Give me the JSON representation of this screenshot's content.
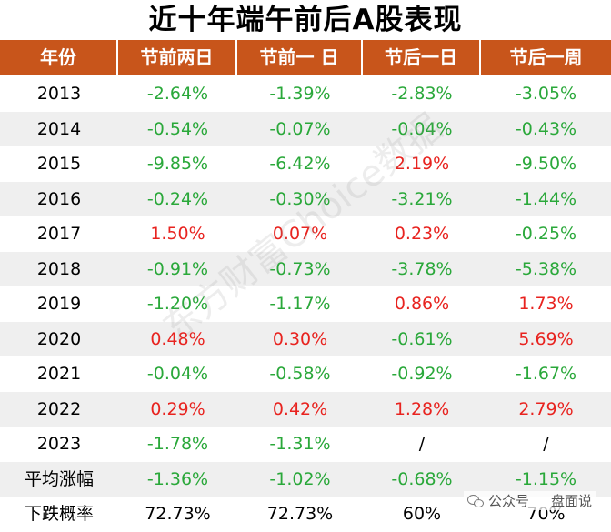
{
  "chart_data": {
    "type": "table",
    "title": "近十年端午前后A股表现",
    "columns": [
      "年份",
      "节前两日",
      "节前一 日",
      "节后一日",
      "节后一周"
    ],
    "rows": [
      {
        "label": "2013",
        "values": [
          "-2.64%",
          "-1.39%",
          "-2.83%",
          "-3.05%"
        ],
        "colors": [
          "neg",
          "neg",
          "neg",
          "neg"
        ]
      },
      {
        "label": "2014",
        "values": [
          "-0.54%",
          "-0.07%",
          "-0.04%",
          "-0.43%"
        ],
        "colors": [
          "neg",
          "neg",
          "neg",
          "neg"
        ]
      },
      {
        "label": "2015",
        "values": [
          "-9.85%",
          "-6.42%",
          "2.19%",
          "-9.50%"
        ],
        "colors": [
          "neg",
          "neg",
          "pos",
          "neg"
        ]
      },
      {
        "label": "2016",
        "values": [
          "-0.24%",
          "-0.30%",
          "-3.21%",
          "-1.44%"
        ],
        "colors": [
          "neg",
          "neg",
          "neg",
          "neg"
        ]
      },
      {
        "label": "2017",
        "values": [
          "1.50%",
          "0.07%",
          "0.23%",
          "-0.25%"
        ],
        "colors": [
          "pos",
          "pos",
          "pos",
          "neg"
        ]
      },
      {
        "label": "2018",
        "values": [
          "-0.91%",
          "-0.73%",
          "-3.78%",
          "-5.38%"
        ],
        "colors": [
          "neg",
          "neg",
          "neg",
          "neg"
        ]
      },
      {
        "label": "2019",
        "values": [
          "-1.20%",
          "-1.17%",
          "0.86%",
          "1.73%"
        ],
        "colors": [
          "neg",
          "neg",
          "pos",
          "pos"
        ]
      },
      {
        "label": "2020",
        "values": [
          "0.48%",
          "0.30%",
          "-0.61%",
          "5.69%"
        ],
        "colors": [
          "pos",
          "pos",
          "neg",
          "pos"
        ]
      },
      {
        "label": "2021",
        "values": [
          "-0.04%",
          "-0.58%",
          "-0.92%",
          "-1.67%"
        ],
        "colors": [
          "neg",
          "neg",
          "neg",
          "neg"
        ]
      },
      {
        "label": "2022",
        "values": [
          "0.29%",
          "0.42%",
          "1.28%",
          "2.79%"
        ],
        "colors": [
          "pos",
          "pos",
          "pos",
          "pos"
        ]
      },
      {
        "label": "2023",
        "values": [
          "-1.78%",
          "-1.31%",
          "/",
          "/"
        ],
        "colors": [
          "neg",
          "neg",
          "plain",
          "plain"
        ]
      },
      {
        "label": "平均涨幅",
        "values": [
          "-1.36%",
          "-1.02%",
          "-0.68%",
          "-1.15%"
        ],
        "colors": [
          "neg",
          "neg",
          "neg",
          "neg"
        ]
      },
      {
        "label": "下跌概率",
        "values": [
          "72.73%",
          "72.73%",
          "60%",
          "70%"
        ],
        "colors": [
          "plain",
          "plain",
          "plain",
          "plain"
        ]
      }
    ],
    "colors": {
      "header_bg": "#c8551b",
      "positive": "#e8231f",
      "negative": "#2aa83a",
      "alt_row": "#efefef"
    }
  },
  "watermark": "东方财富Choice数据",
  "wechat": {
    "label": "公众号",
    "name": "盘面说"
  }
}
